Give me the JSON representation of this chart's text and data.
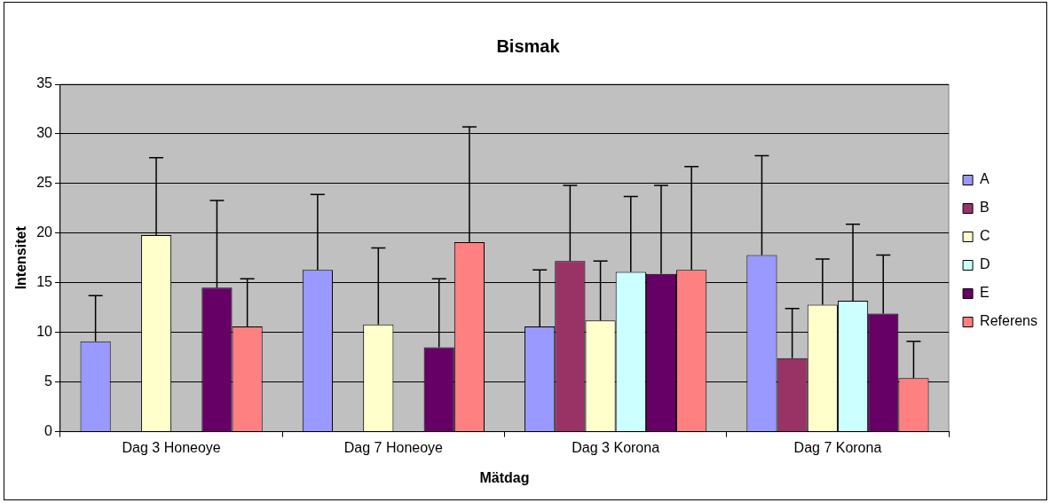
{
  "chart_data": {
    "type": "bar",
    "title": "Bismak",
    "xlabel": "Mätdag",
    "ylabel": "Intensitet",
    "categories": [
      "Dag 3 Honeoye",
      "Dag 7 Honeoye",
      "Dag 3 Korona",
      "Dag 7 Korona"
    ],
    "series": [
      {
        "name": "A",
        "color": "#9999ff",
        "values": [
          9.1,
          16.3,
          10.6,
          17.8
        ],
        "errors": [
          [
            9.1,
            13.7
          ],
          [
            16.3,
            23.9
          ],
          [
            10.6,
            16.3
          ],
          [
            17.8,
            27.8
          ]
        ]
      },
      {
        "name": "B",
        "color": "#993366",
        "values": [
          null,
          null,
          17.2,
          7.4
        ],
        "errors": [
          null,
          null,
          [
            17.2,
            24.8
          ],
          [
            7.4,
            12.4
          ]
        ]
      },
      {
        "name": "C",
        "color": "#ffffcc",
        "values": [
          19.8,
          10.8,
          11.2,
          12.8
        ],
        "errors": [
          [
            19.8,
            27.6
          ],
          [
            10.8,
            18.5
          ],
          [
            11.2,
            17.2
          ],
          [
            12.8,
            17.4
          ]
        ]
      },
      {
        "name": "D",
        "color": "#ccffff",
        "values": [
          null,
          null,
          16.1,
          13.2
        ],
        "errors": [
          null,
          null,
          [
            16.1,
            23.7
          ],
          [
            13.2,
            20.9
          ]
        ]
      },
      {
        "name": "E",
        "color": "#660066",
        "values": [
          14.5,
          8.5,
          15.9,
          11.9
        ],
        "errors": [
          [
            14.5,
            23.3
          ],
          [
            8.5,
            15.4
          ],
          [
            15.9,
            24.8
          ],
          [
            11.9,
            17.8
          ]
        ]
      },
      {
        "name": "Referens",
        "color": "#ff8080",
        "values": [
          10.6,
          19.1,
          16.3,
          5.4
        ],
        "errors": [
          [
            10.6,
            15.4
          ],
          [
            19.1,
            30.7
          ],
          [
            16.3,
            26.7
          ],
          [
            5.4,
            9.1
          ]
        ]
      }
    ],
    "ylim": [
      0,
      35
    ],
    "yticks": [
      0,
      5,
      10,
      15,
      20,
      25,
      30,
      35
    ],
    "grid": "y",
    "legend": "right"
  }
}
